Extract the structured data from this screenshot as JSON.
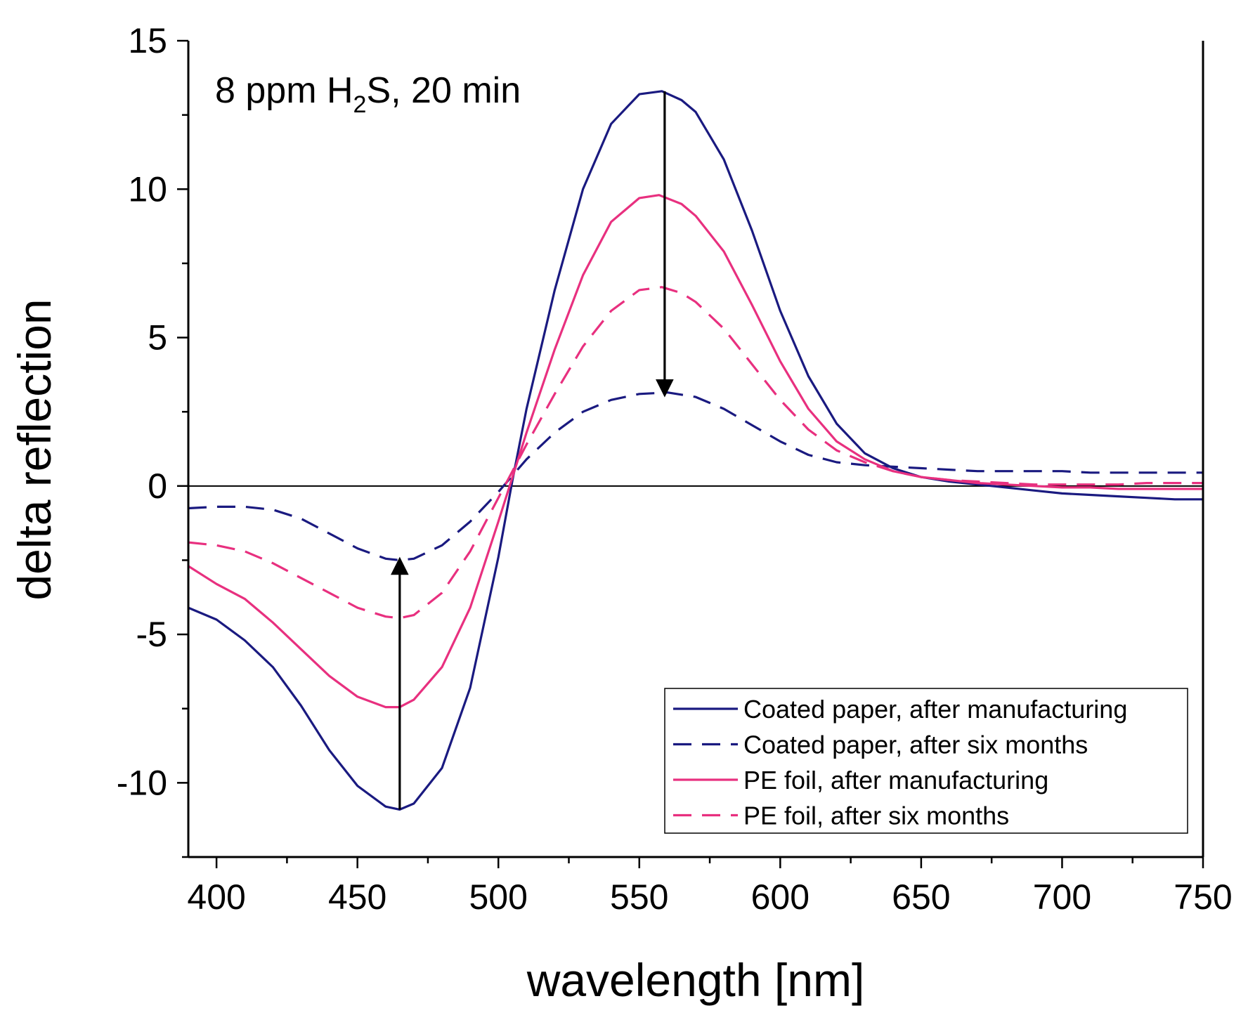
{
  "chart_data": {
    "type": "line",
    "title": "",
    "xlabel": "wavelength [nm]",
    "ylabel": "delta reflection",
    "xlim": [
      390,
      750
    ],
    "ylim": [
      -12.5,
      15
    ],
    "xticks": [
      400,
      450,
      500,
      550,
      600,
      650,
      700,
      750
    ],
    "yticks": [
      -10,
      -5,
      0,
      5,
      10,
      15
    ],
    "xtick_labels": [
      "400",
      "450",
      "500",
      "550",
      "600",
      "650",
      "700",
      "750"
    ],
    "ytick_labels": [
      "-10",
      "-5",
      "0",
      "5",
      "10",
      "15"
    ],
    "grid": false,
    "zero_line": true,
    "annotation": {
      "prefix": "8 ppm H",
      "subscript": "2",
      "suffix": "S, 20 min"
    },
    "arrows": [
      {
        "x": 465,
        "from": -10.9,
        "to": -2.5
      },
      {
        "x": 559,
        "from": 13.3,
        "to": 3.1
      }
    ],
    "legend_position": "bottom-right",
    "series": [
      {
        "name": "Coated paper, after manufacturing",
        "color": "#1a1a80",
        "dash": "solid",
        "x": [
          390,
          400,
          410,
          420,
          430,
          440,
          450,
          460,
          465,
          470,
          480,
          490,
          500,
          505,
          510,
          520,
          530,
          540,
          550,
          558,
          565,
          570,
          580,
          590,
          600,
          610,
          620,
          630,
          640,
          650,
          660,
          670,
          680,
          690,
          700,
          710,
          720,
          730,
          740,
          750
        ],
        "y": [
          -4.1,
          -4.5,
          -5.2,
          -6.1,
          -7.4,
          -8.9,
          -10.1,
          -10.8,
          -10.9,
          -10.7,
          -9.5,
          -6.8,
          -2.4,
          0.2,
          2.6,
          6.6,
          10.0,
          12.2,
          13.2,
          13.3,
          13.0,
          12.6,
          11.0,
          8.6,
          5.9,
          3.7,
          2.1,
          1.1,
          0.6,
          0.3,
          0.15,
          0.05,
          -0.05,
          -0.15,
          -0.25,
          -0.3,
          -0.35,
          -0.4,
          -0.45,
          -0.45
        ]
      },
      {
        "name": "Coated paper, after six months",
        "color": "#1a1a80",
        "dash": "dashed",
        "x": [
          390,
          400,
          410,
          420,
          430,
          440,
          450,
          460,
          465,
          470,
          480,
          490,
          500,
          505,
          510,
          520,
          530,
          540,
          550,
          560,
          570,
          580,
          590,
          600,
          610,
          620,
          630,
          640,
          650,
          660,
          670,
          680,
          690,
          700,
          710,
          720,
          730,
          740,
          750
        ],
        "y": [
          -0.75,
          -0.7,
          -0.7,
          -0.8,
          -1.1,
          -1.6,
          -2.1,
          -2.45,
          -2.5,
          -2.45,
          -2.0,
          -1.2,
          -0.2,
          0.35,
          0.9,
          1.8,
          2.5,
          2.9,
          3.1,
          3.15,
          3.0,
          2.6,
          2.05,
          1.5,
          1.05,
          0.8,
          0.7,
          0.65,
          0.6,
          0.55,
          0.5,
          0.5,
          0.5,
          0.5,
          0.45,
          0.45,
          0.45,
          0.45,
          0.45
        ]
      },
      {
        "name": "PE foil, after manufacturing",
        "color": "#e8307f",
        "dash": "solid",
        "x": [
          390,
          400,
          410,
          420,
          430,
          440,
          450,
          460,
          465,
          470,
          480,
          490,
          500,
          505,
          510,
          520,
          530,
          540,
          550,
          557,
          565,
          570,
          580,
          590,
          600,
          610,
          620,
          630,
          640,
          650,
          660,
          670,
          680,
          690,
          700,
          710,
          720,
          730,
          740,
          750
        ],
        "y": [
          -2.7,
          -3.3,
          -3.8,
          -4.6,
          -5.5,
          -6.4,
          -7.1,
          -7.45,
          -7.45,
          -7.2,
          -6.1,
          -4.1,
          -1.2,
          0.3,
          1.8,
          4.6,
          7.1,
          8.9,
          9.7,
          9.8,
          9.5,
          9.1,
          7.9,
          6.1,
          4.2,
          2.6,
          1.5,
          0.9,
          0.5,
          0.3,
          0.2,
          0.1,
          0.05,
          0.0,
          -0.05,
          -0.05,
          -0.1,
          -0.1,
          -0.1,
          -0.1
        ]
      },
      {
        "name": "PE foil, after six months",
        "color": "#e8307f",
        "dash": "dashed",
        "x": [
          390,
          400,
          410,
          420,
          430,
          440,
          450,
          460,
          465,
          470,
          480,
          490,
          500,
          505,
          510,
          520,
          530,
          540,
          550,
          558,
          565,
          570,
          580,
          590,
          600,
          610,
          620,
          630,
          640,
          650,
          660,
          670,
          680,
          690,
          700,
          710,
          720,
          730,
          740,
          750
        ],
        "y": [
          -1.9,
          -2.0,
          -2.2,
          -2.6,
          -3.1,
          -3.6,
          -4.1,
          -4.4,
          -4.45,
          -4.35,
          -3.6,
          -2.2,
          -0.4,
          0.5,
          1.4,
          3.1,
          4.7,
          5.9,
          6.6,
          6.7,
          6.5,
          6.2,
          5.3,
          4.1,
          2.9,
          1.9,
          1.2,
          0.8,
          0.5,
          0.3,
          0.2,
          0.15,
          0.1,
          0.05,
          0.05,
          0.05,
          0.05,
          0.1,
          0.1,
          0.1
        ]
      }
    ]
  }
}
